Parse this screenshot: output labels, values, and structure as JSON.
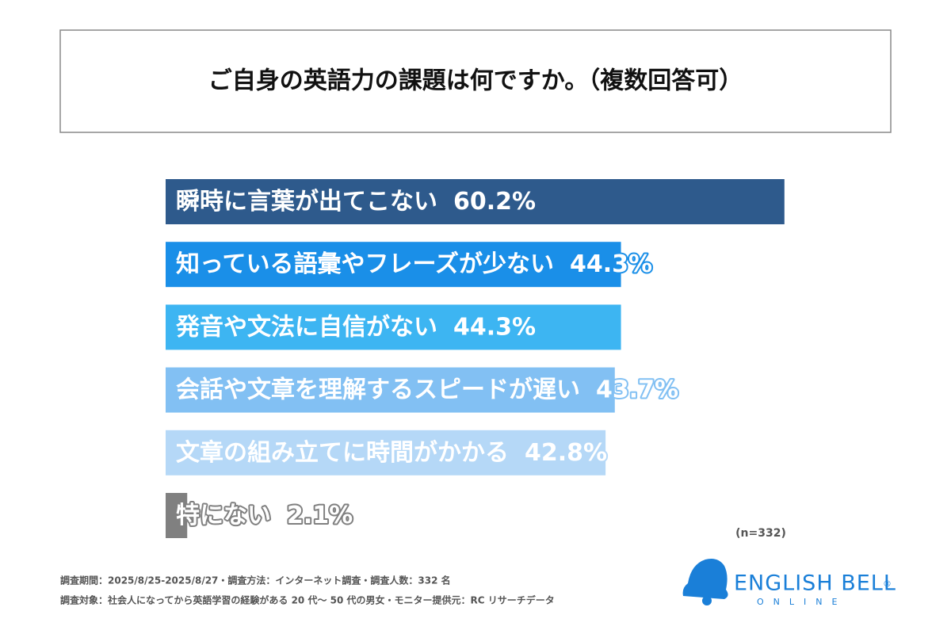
{
  "chart_data": {
    "type": "bar",
    "orientation": "horizontal",
    "title": "ご自身の英語力の課題は何ですか。（複数回答可）",
    "categories": [
      "瞬時に言葉が出てこない",
      "知っている語彙やフレーズが少ない",
      "発音や文法に自信がない",
      "会話や文章を理解するスピードが遅い",
      "文章の組み立てに時間がかかる",
      "特にない"
    ],
    "values": [
      60.2,
      44.3,
      44.3,
      43.7,
      42.8,
      2.1
    ],
    "value_labels": [
      "60.2%",
      "44.3%",
      "44.3%",
      "43.7%",
      "42.8%",
      "2.1%"
    ],
    "colors": [
      "#2e5a8c",
      "#1a8fe8",
      "#3db5f2",
      "#82c0f3",
      "#b5d8f7",
      "#808080"
    ],
    "annotation": "(n=332)"
  },
  "footer": [
    "調査期間：2025/8/25-2025/8/27・調査方法：インターネット調査・調査人数：332 名",
    "調査対象：社会人になってから英語学習の経験がある 20 代〜 50 代の男女・モニター提供元：RC リサーチデータ"
  ],
  "logo": {
    "name": "ENGLISH BELL",
    "mark": "®",
    "sub": "ONLINE"
  }
}
